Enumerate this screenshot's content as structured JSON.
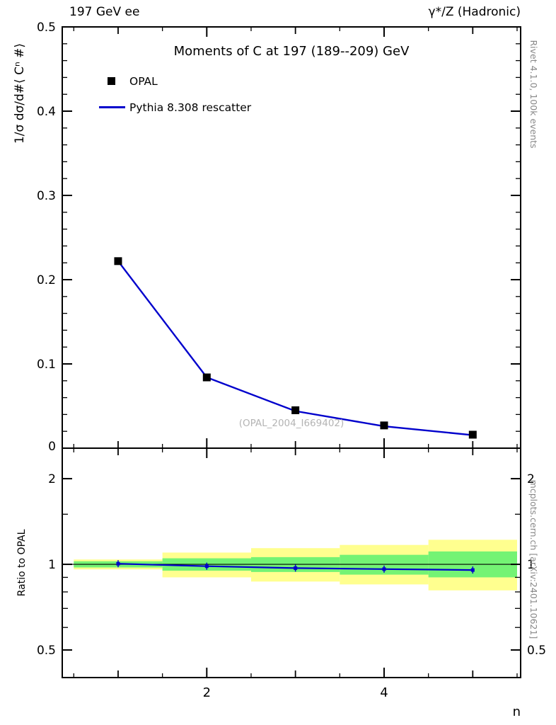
{
  "header": {
    "left": "197 GeV ee",
    "right": "γ*/Z (Hadronic)"
  },
  "side_notes": {
    "top": "Rivet 4.1.0, 100k events",
    "bottom": "mcplots.cern.ch [arXiv:2401.10621]"
  },
  "title": "Moments of C at 197 (189--209) GeV",
  "legend": [
    {
      "label": "OPAL",
      "marker": "black-square"
    },
    {
      "label": "Pythia 8.308 rescatter",
      "marker": "blue-line"
    }
  ],
  "watermark": "(OPAL_2004_I669402)",
  "axes": {
    "y_top_label": "1/σ  dσ/d#⟨ Cⁿ #⟩",
    "y_bottom_label": "Ratio to OPAL",
    "x_label": "n"
  },
  "chart_data": {
    "type": "line",
    "x_range": [
      0.37,
      5.54
    ],
    "x": [
      1,
      2,
      3,
      4,
      5
    ],
    "x_major_ticks": [
      2,
      4
    ],
    "x_medium_ticks": [
      1,
      3,
      5
    ],
    "x_minor_ticks": [
      0.5,
      1.5,
      2.5,
      3.5,
      4.5,
      5.5
    ],
    "line_color": "#0000cc",
    "marker_color": "#000000",
    "top_panel": {
      "y_range": [
        0,
        0.5
      ],
      "y_major_ticks": [
        0,
        0.1,
        0.2,
        0.3,
        0.4,
        0.5
      ],
      "y_minor_step": 0.02,
      "series": [
        {
          "name": "OPAL",
          "style": "marker-square",
          "values": [
            0.222,
            0.084,
            0.045,
            0.027,
            0.016
          ]
        },
        {
          "name": "Pythia 8.308 rescatter",
          "style": "line",
          "values": [
            0.222,
            0.084,
            0.044,
            0.026,
            0.0155
          ]
        }
      ]
    },
    "ratio_panel": {
      "scale": "log",
      "y_range": [
        0.4,
        2.56
      ],
      "y_major_ticks": [
        0.5,
        1,
        2
      ],
      "y_minor_ticks": [
        0.6,
        0.7,
        0.8,
        0.9,
        1.5
      ],
      "ratio_values": [
        1.005,
        0.985,
        0.97,
        0.962,
        0.955
      ],
      "band_colors": {
        "outer": "#ffff8f",
        "inner": "#74f374"
      },
      "bands": [
        {
          "x0": 0.5,
          "x1": 1.5,
          "outer": [
            0.96,
            1.04
          ],
          "inner": [
            0.975,
            1.025
          ]
        },
        {
          "x0": 1.5,
          "x1": 2.5,
          "outer": [
            0.9,
            1.1
          ],
          "inner": [
            0.95,
            1.05
          ]
        },
        {
          "x0": 2.5,
          "x1": 3.5,
          "outer": [
            0.87,
            1.14
          ],
          "inner": [
            0.94,
            1.06
          ]
        },
        {
          "x0": 3.5,
          "x1": 4.5,
          "outer": [
            0.85,
            1.17
          ],
          "inner": [
            0.92,
            1.08
          ]
        },
        {
          "x0": 4.5,
          "x1": 5.5,
          "outer": [
            0.81,
            1.22
          ],
          "inner": [
            0.9,
            1.11
          ]
        }
      ]
    }
  }
}
